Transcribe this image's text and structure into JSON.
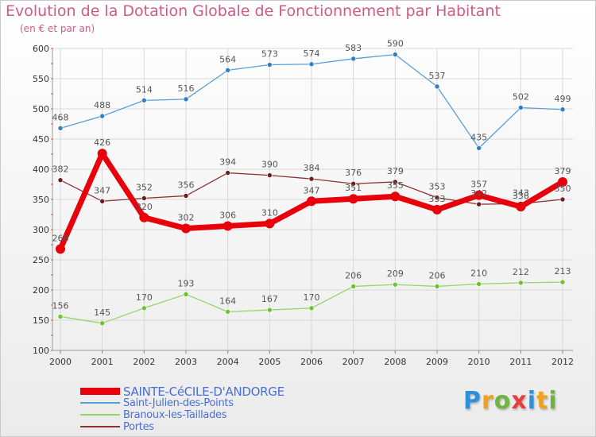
{
  "header": {
    "title": "Evolution de la Dotation Globale de Fonctionnement par Habitant",
    "subtitle": "(en € et par an)"
  },
  "logo": {
    "text": "Proxiti",
    "letters": [
      "P",
      "r",
      "o",
      "x",
      "i",
      "t",
      "i"
    ],
    "colors": [
      "#2f8fd9",
      "#f0a11d",
      "#6fb43b",
      "#e43f3f",
      "#2f8fd9",
      "#f0a11d",
      "#6fb43b"
    ]
  },
  "colors": {
    "title": "#d05a86",
    "grid": "#d9d9d9",
    "legend_text": "#4a6fd6"
  },
  "chart_data": {
    "type": "line",
    "title": "Evolution de la Dotation Globale de Fonctionnement par Habitant",
    "subtitle": "(en € et par an)",
    "xlabel": "",
    "ylabel": "",
    "x": [
      "2000",
      "2001",
      "2002",
      "2003",
      "2004",
      "2005",
      "2006",
      "2007",
      "2008",
      "2009",
      "2010",
      "2011",
      "2012"
    ],
    "ylim": [
      100,
      600
    ],
    "yticks": [
      100,
      150,
      200,
      250,
      300,
      350,
      400,
      450,
      500,
      550,
      600
    ],
    "grid": true,
    "legend_position": "bottom-left",
    "series": [
      {
        "name": "SAINTE-CéCILE-D'ANDORGE",
        "color": "#e8000b",
        "line_width": 7,
        "point_color": "#e8000b",
        "label_color": "#555555",
        "values": [
          268,
          426,
          320,
          302,
          306,
          310,
          347,
          351,
          355,
          333,
          357,
          338,
          379
        ],
        "labels": [
          "268",
          "426",
          "320",
          "302",
          "306",
          "310",
          "347",
          "351",
          "355",
          "333",
          "357",
          "338",
          "379"
        ]
      },
      {
        "name": "Saint-Julien-des-Points",
        "color": "#5a9fd4",
        "line_width": 1.3,
        "point_color": "#2f7fc2",
        "label_color": "#555555",
        "values": [
          468,
          488,
          514,
          516,
          564,
          573,
          574,
          583,
          590,
          537,
          435,
          502,
          499
        ],
        "labels": [
          "468",
          "488",
          "514",
          "516",
          "564",
          "573",
          "574",
          "583",
          "590",
          "537",
          "435",
          "502",
          "499"
        ]
      },
      {
        "name": "Branoux-les-Taillades",
        "color": "#99d36a",
        "line_width": 1.3,
        "point_color": "#6fc22e",
        "label_color": "#555555",
        "values": [
          156,
          145,
          170,
          193,
          164,
          167,
          170,
          206,
          209,
          206,
          210,
          212,
          213
        ],
        "labels": [
          "156",
          "145",
          "170",
          "193",
          "164",
          "167",
          "170",
          "206",
          "209",
          "206",
          "210",
          "212",
          "213"
        ]
      },
      {
        "name": "Portes",
        "color": "#8a3535",
        "line_width": 1.3,
        "point_color": "#6a1f1f",
        "label_color": "#555555",
        "values": [
          382,
          347,
          352,
          356,
          394,
          390,
          384,
          376,
          379,
          353,
          342,
          343,
          350
        ],
        "labels": [
          "382",
          "347",
          "352",
          "356",
          "394",
          "390",
          "384",
          "376",
          "379",
          "353",
          "342",
          "343",
          "350"
        ]
      }
    ]
  }
}
